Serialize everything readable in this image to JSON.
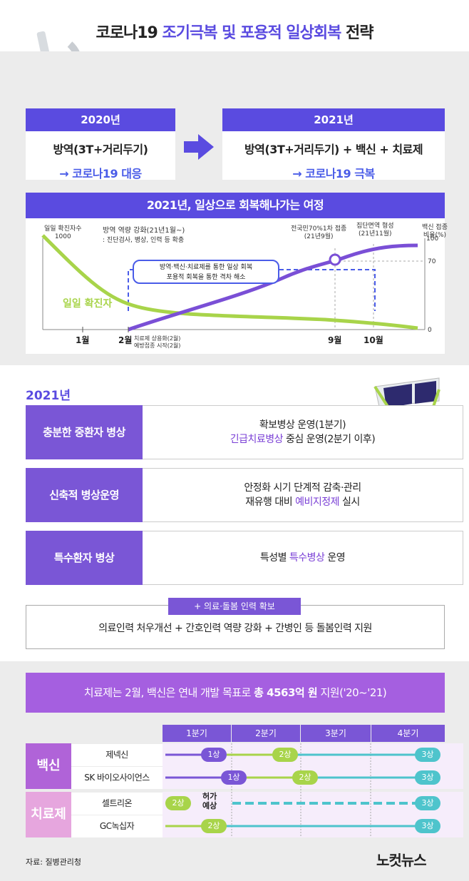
{
  "title": {
    "part1": "코로나19 ",
    "part2": "조기극복 및 포용적 일상회복",
    "part3": " 전략"
  },
  "colors": {
    "accent": "#5a4be0",
    "purple": "#7a56d6",
    "green": "#a8d44a",
    "teal": "#4ec4cc",
    "pink": "#e6a6de"
  },
  "years": {
    "y2020": {
      "head": "2020년",
      "line1": "방역(3T+거리두기)",
      "line2": "→ 코로나19 대응"
    },
    "y2021": {
      "head": "2021년",
      "line1": "방역(3T+거리두기) + 백신 + 치료제",
      "line2": "→ 코로나19 극복"
    }
  },
  "journey": {
    "title": "2021년, 일상으로 회복해나가는 여정",
    "left_axis": {
      "label1": "일일 확진자수",
      "label2": "1000"
    },
    "right_axis": {
      "label1": "백신 접종",
      "label2": "비율(%)",
      "t100": "100",
      "t70": "70",
      "t0": "0"
    },
    "note1": "방역 역량 강화(21년1월~)",
    "note2": ": 진단검사, 병상, 인력 등 확충",
    "box1": "방역·백신·치료제를 통한 일상 회복",
    "box2": "포용적 회복을 통한 격차 해소",
    "confirmed_label": "일일 확진자",
    "ann_sep1": "전국민70%1차 접종",
    "ann_sep2": "(21년9월)",
    "ann_nov1": "집단면역 형성",
    "ann_nov2": "(21년11월)",
    "x_jan": "1월",
    "x_feb": "2월",
    "x_sep": "9월",
    "x_oct": "10월",
    "feb_note1": "치료제 상용화(2월)",
    "feb_note2": "예방접종 시작(2월)"
  },
  "plan": {
    "year": "2021년",
    "rows": [
      {
        "left": "충분한 중환자 병상",
        "r1": "확보병상 운영(1분기)",
        "r2a": "긴급치료병상",
        "r2b": " 중심 운영(2분기 이후)"
      },
      {
        "left": "신축적 병상운영",
        "r1": "안정화 시기 단계적 감축·관리",
        "r2a": "재유행 대비 ",
        "r2b": "예비지정제",
        "r2c": " 실시"
      },
      {
        "left": "특수환자 병상",
        "r1a": "특성별 ",
        "r1b": "특수병상",
        "r1c": " 운영"
      }
    ],
    "staff_tag": "+ 의료·돌봄 인력 확보",
    "staff_text": "의료인력 처우개선 + 간호인력 역량 강화 + 간병인 등 돌봄인력 지원"
  },
  "funding": {
    "a": "치료제는 2월, 백신은 연내 개발 목표로 ",
    "b": "총 4563억 원",
    "c": " 지원('20~'21)"
  },
  "timeline": {
    "quarters": [
      "1분기",
      "2분기",
      "3분기",
      "4분기"
    ],
    "groups": {
      "vaccine": "백신",
      "treatment": "치료제"
    },
    "rows": [
      {
        "name": "제넥신",
        "p1": "1상",
        "p2": "2상",
        "p3": "3상"
      },
      {
        "name": "SK 바이오사이언스",
        "p1": "1상",
        "p2": "2상",
        "p3": "3상"
      },
      {
        "name": "셀트리온",
        "p1": "2상",
        "mid1": "허가",
        "mid2": "예상",
        "p3": "3상"
      },
      {
        "name": "GC녹십자",
        "p1": "2상",
        "p3": "3상"
      }
    ]
  },
  "footer": {
    "source": "자료: 질병관리청",
    "logo": "노컷뉴스"
  }
}
